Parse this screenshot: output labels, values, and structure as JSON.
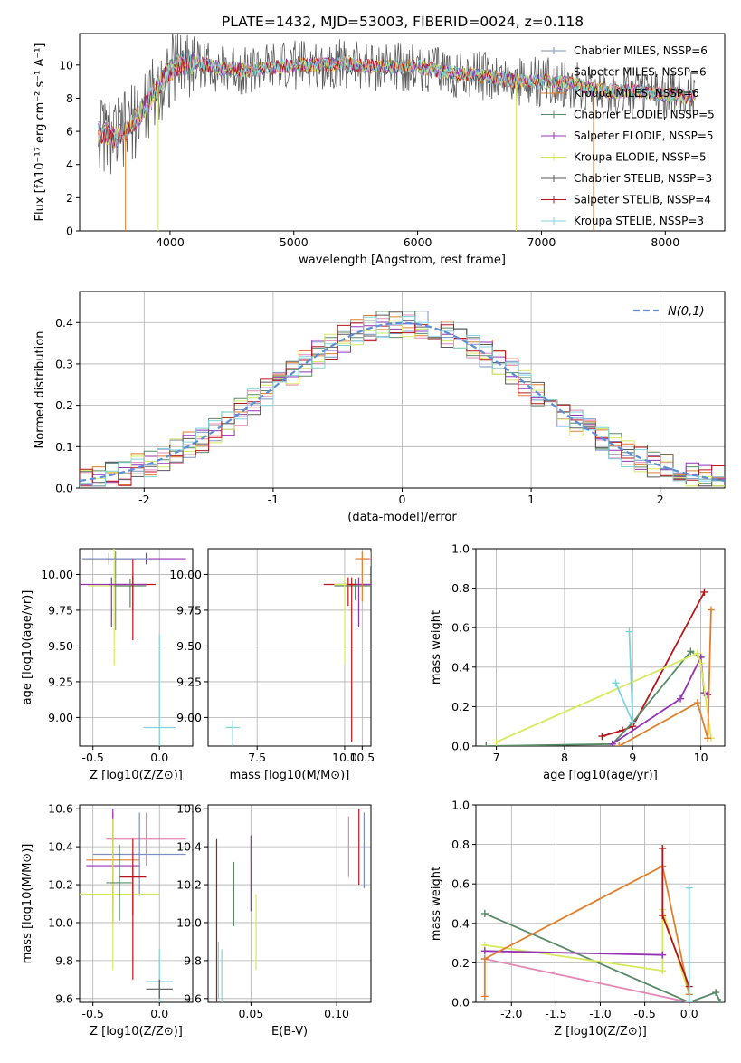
{
  "chart_data": [
    {
      "type": "line",
      "title": "PLATE=1432, MJD=53003, FIBERID=0024, z=0.118",
      "xlabel": "wavelength [Angstrom, rest frame]",
      "ylabel": "Flux [fλ10⁻¹⁷ erg cm⁻² s⁻¹ A⁻¹]",
      "xlim": [
        3270,
        8480
      ],
      "ylim": [
        0,
        11.9
      ],
      "xticks": [
        4000,
        5000,
        6000,
        7000,
        8000
      ],
      "yticks": [
        0,
        2,
        4,
        6,
        8,
        10
      ],
      "legend_position": "top-right",
      "legend": [
        {
          "label": "Chabrier MILES, NSSP=6",
          "color": "#7b8fc0"
        },
        {
          "label": "Salpeter MILES, NSSP=6",
          "color": "#e388b7"
        },
        {
          "label": "Kroupa MILES, NSSP=6",
          "color": "#e07f2c"
        },
        {
          "label": "Chabrier ELODIE, NSSP=5",
          "color": "#5a8b67"
        },
        {
          "label": "Salpeter ELODIE, NSSP=5",
          "color": "#9434b5"
        },
        {
          "label": "Kroupa ELODIE, NSSP=5",
          "color": "#d7ea5c"
        },
        {
          "label": "Chabrier STELIB, NSSP=3",
          "color": "#5a5a5a"
        },
        {
          "label": "Salpeter STELIB, NSSP=4",
          "color": "#b8141c"
        },
        {
          "label": "Kroupa STELIB, NSSP=3",
          "color": "#7fd3dc"
        }
      ],
      "data_points": {
        "x": [
          3420,
          3550,
          3650,
          3750,
          3850,
          3950,
          4050,
          4200,
          4400,
          4600,
          4800,
          5000,
          5200,
          5400,
          5600,
          5800,
          6000,
          6200,
          6400,
          6600,
          6800,
          7000,
          7200,
          7400,
          7600,
          7800,
          8000,
          8200
        ],
        "y": [
          6.0,
          5.6,
          6.1,
          7.0,
          8.0,
          9.2,
          10.0,
          10.2,
          9.8,
          9.7,
          9.8,
          10.0,
          10.0,
          10.1,
          9.9,
          9.9,
          9.9,
          9.6,
          9.4,
          9.3,
          9.0,
          9.0,
          8.9,
          8.6,
          8.4,
          8.4,
          8.2,
          8.1
        ]
      }
    },
    {
      "type": "line",
      "xlabel": "(data-model)/error",
      "ylabel": "Normed distribution",
      "xlim": [
        -2.5,
        2.5
      ],
      "ylim": [
        0,
        0.475
      ],
      "xticks": [
        -2,
        -1,
        0,
        1,
        2
      ],
      "yticks": [
        0.0,
        0.1,
        0.2,
        0.3,
        0.4
      ],
      "grid": true,
      "legend_position": "top-right",
      "legend": [
        {
          "label": "N(0,1)",
          "color": "#5b8ed6"
        }
      ]
    },
    {
      "type": "scatter",
      "xlabel": "Z [log10(Z/Z⊙)]",
      "ylabel": "age  [log10(age/yr)]",
      "xlim": [
        -0.6,
        0.25
      ],
      "ylim": [
        8.8,
        10.18
      ],
      "xticks": [
        -0.5,
        0.0
      ],
      "yticks": [
        9.0,
        9.25,
        9.5,
        9.75,
        10.0
      ],
      "grid": true,
      "points": [
        {
          "x": -0.38,
          "y": 10.11,
          "xerr": 0.2,
          "yerr": 0.04,
          "color": "#5a5a5a"
        },
        {
          "x": -0.1,
          "y": 10.11,
          "xerr": 0.3,
          "yerr": 0.04,
          "color": "#9434b5"
        },
        {
          "x": -0.2,
          "y": 9.93,
          "xerr": 0.17,
          "yerr": 0.18,
          "color": "#b8141c"
        },
        {
          "x": -0.34,
          "y": 9.92,
          "xerr": 0.2,
          "yerr": 0.56,
          "color": "#d7ea5c"
        },
        {
          "x": 0.0,
          "y": 8.93,
          "xerr": 0.12,
          "yerr": 0.65,
          "color": "#7fd3dc"
        }
      ]
    },
    {
      "type": "scatter",
      "xlabel": "mass [log10(M/M⊙)]",
      "xlim": [
        6.1,
        10.75
      ],
      "ylim": [
        8.8,
        10.18
      ],
      "xticks": [
        7.5,
        10.0,
        10.5
      ],
      "xticklabels": [
        "7.5",
        "10.0",
        "10.5"
      ],
      "yticks": [
        9.0,
        9.25,
        9.5,
        9.75,
        10.0
      ],
      "grid": true
    },
    {
      "type": "line",
      "xlabel": "age  [log10(age/yr)]",
      "ylabel": "mass weight",
      "xlim": [
        6.7,
        10.35
      ],
      "ylim": [
        0,
        1.0
      ],
      "xticks": [
        7,
        8,
        9,
        10
      ],
      "yticks": [
        0.0,
        0.2,
        0.4,
        0.6,
        0.8,
        1.0
      ],
      "grid": true,
      "series": [
        {
          "color": "#b8141c",
          "x": [
            8.55,
            8.85,
            9.0,
            10.05
          ],
          "y": [
            0.05,
            0.08,
            0.1,
            0.78
          ]
        },
        {
          "color": "#5a8b67",
          "x": [
            6.85,
            8.7,
            9.0,
            9.85,
            10.0
          ],
          "y": [
            0.0,
            0.01,
            0.12,
            0.48,
            0.45
          ]
        },
        {
          "color": "#9434b5",
          "x": [
            8.7,
            9.7,
            10.0,
            10.05,
            10.1
          ],
          "y": [
            0.01,
            0.24,
            0.45,
            0.27,
            0.26
          ]
        },
        {
          "color": "#d7ea5c",
          "x": [
            7.0,
            9.95,
            10.0,
            10.15
          ],
          "y": [
            0.02,
            0.47,
            0.42,
            0.04
          ]
        },
        {
          "color": "#e07f2c",
          "x": [
            8.8,
            9.95,
            10.1,
            10.15
          ],
          "y": [
            0.0,
            0.22,
            0.04,
            0.69
          ]
        },
        {
          "color": "#7fd3dc",
          "x": [
            8.75,
            9.0,
            8.95,
            9.0
          ],
          "y": [
            0.32,
            0.12,
            0.58,
            0.12
          ]
        }
      ]
    },
    {
      "type": "scatter",
      "xlabel": "Z [log10(Z/Z⊙)]",
      "ylabel": "mass [log10(M/M⊙)]",
      "xlim": [
        -0.6,
        0.25
      ],
      "ylim": [
        9.58,
        10.62
      ],
      "xticks": [
        -0.5,
        0.0
      ],
      "yticks": [
        9.6,
        9.8,
        10.0,
        10.2,
        10.4,
        10.6
      ],
      "grid": true
    },
    {
      "type": "scatter",
      "xlabel": "E(B-V)",
      "xlim": [
        0.025,
        0.12
      ],
      "ylim": [
        9.58,
        10.62
      ],
      "xticks": [
        0.05,
        0.1
      ],
      "xticklabels": [
        "0.05",
        "0.10"
      ],
      "yticks": [
        9.6,
        9.8,
        10.0,
        10.2,
        10.4,
        10.6
      ],
      "grid": true
    },
    {
      "type": "line",
      "xlabel": "Z [log10(Z/Z⊙)]",
      "ylabel": "mass weight",
      "xlim": [
        -2.4,
        0.4
      ],
      "ylim": [
        0,
        1.0
      ],
      "xticks": [
        -2.0,
        -1.5,
        -1.0,
        -0.5,
        0.0
      ],
      "yticks": [
        0.0,
        0.2,
        0.4,
        0.6,
        0.8,
        1.0
      ],
      "grid": true,
      "series": [
        {
          "color": "#5a8b67",
          "x": [
            -2.3,
            0.0,
            0.3,
            0.35
          ],
          "y": [
            0.45,
            0.0,
            0.05,
            0.0
          ]
        },
        {
          "color": "#d7ea5c",
          "x": [
            -2.3,
            -0.3,
            -0.3,
            0.0
          ],
          "y": [
            0.29,
            0.16,
            0.47,
            0.04
          ]
        },
        {
          "color": "#9434b5",
          "x": [
            -2.3,
            -0.3
          ],
          "y": [
            0.26,
            0.24
          ]
        },
        {
          "color": "#e388b7",
          "x": [
            -2.3,
            0.0
          ],
          "y": [
            0.22,
            0.0
          ]
        },
        {
          "color": "#e07f2c",
          "x": [
            -2.3,
            -2.3,
            -0.3,
            0.0
          ],
          "y": [
            0.03,
            0.22,
            0.69,
            0.04
          ]
        },
        {
          "color": "#b8141c",
          "x": [
            -0.3,
            -0.3,
            0.0
          ],
          "y": [
            0.78,
            0.44,
            0.08
          ]
        },
        {
          "color": "#7fd3dc",
          "x": [
            0.0,
            0.0
          ],
          "y": [
            0.0,
            0.58
          ]
        }
      ]
    }
  ]
}
